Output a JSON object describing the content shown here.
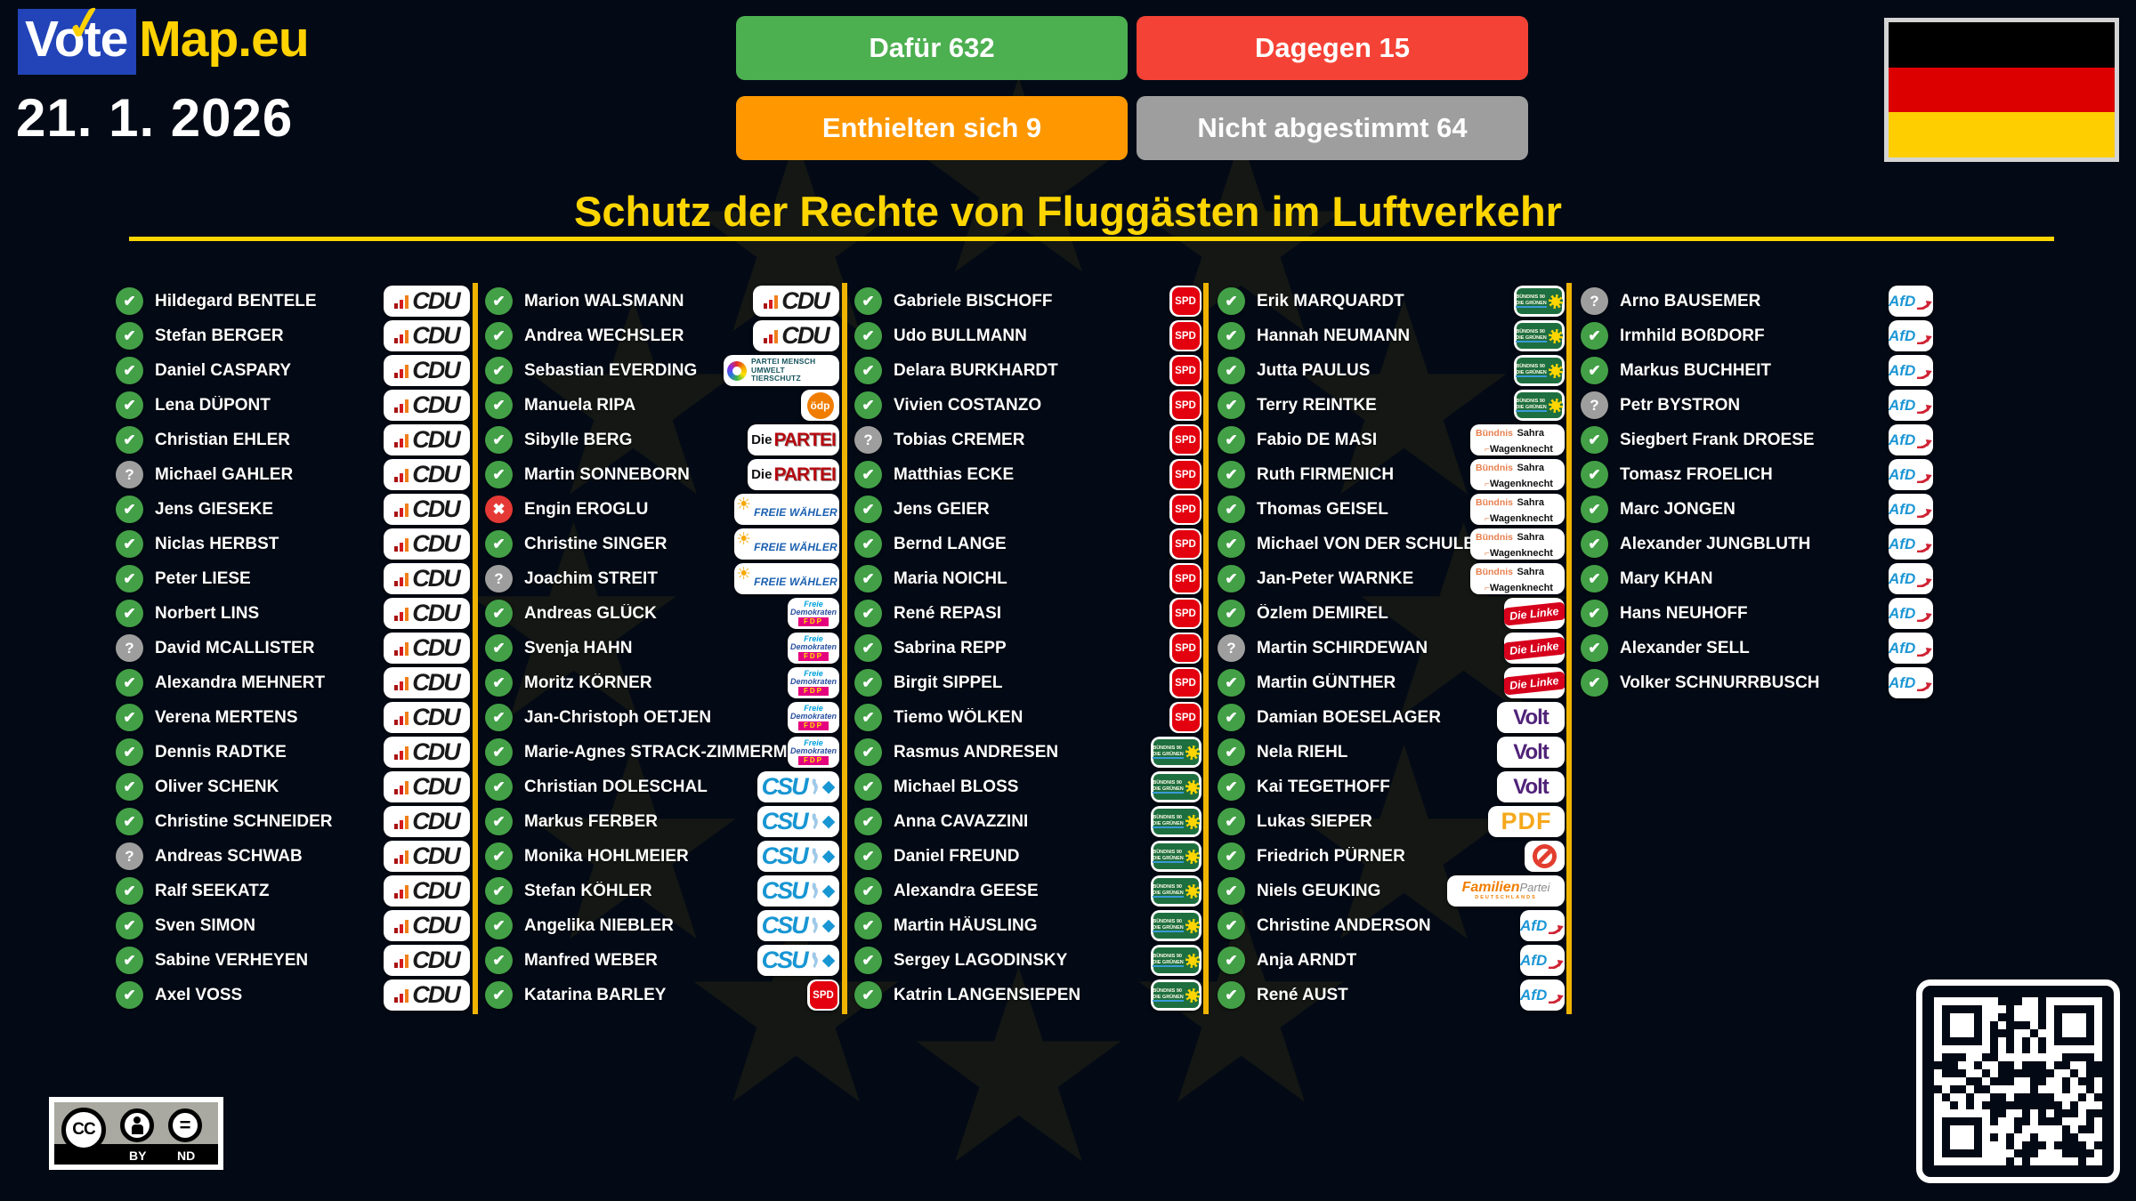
{
  "app": {
    "logo_vote": "Vote",
    "logo_map": "Map.eu",
    "logo_check": "✓",
    "date": "21. 1. 2026",
    "title": "Schutz der Rechte von Fluggästen im Luftverkehr"
  },
  "results": [
    {
      "id": "for",
      "label": "Dafür 632",
      "color": "#4caf50"
    },
    {
      "id": "against",
      "label": "Dagegen 15",
      "color": "#f44336"
    },
    {
      "id": "abstain",
      "label": "Enthielten sich 9",
      "color": "#ff9800"
    },
    {
      "id": "novote",
      "label": "Nicht abgestimmt 64",
      "color": "#9e9e9e"
    }
  ],
  "status_icons": {
    "for": "✔",
    "against": "✖",
    "unknown": "?"
  },
  "status_colors": {
    "for": "#43a047",
    "against": "#e53935",
    "unknown": "#9e9e9e"
  },
  "flag": {
    "stripes": [
      "#000000",
      "#dd0000",
      "#ffce00"
    ]
  },
  "license": {
    "cc": "CC",
    "by": "BY",
    "nd": "ND",
    "eq": "="
  },
  "accent": {
    "yellow": "#ffd500",
    "separator": "#f0b400",
    "background": "#030a15"
  },
  "parties": {
    "cdu": {
      "style": "cdu",
      "label": "CDU"
    },
    "tierschutz": {
      "style": "tierschutz",
      "line1": "PARTEI MENSCH",
      "line2": "UMWELT TIERSCHUTZ"
    },
    "oedp": {
      "style": "oedp",
      "label": "ödp"
    },
    "diepartei": {
      "style": "diepartei",
      "label1": "Die",
      "label2": "PARTEI"
    },
    "fw": {
      "style": "fw",
      "sun": "☀",
      "label": "FREIE WÄHLER"
    },
    "fdp": {
      "style": "fdp",
      "line1": "Freie",
      "line2": "Demokraten",
      "label": "FDP"
    },
    "csu": {
      "style": "csu",
      "label": "CSU",
      "diamond": "◆"
    },
    "spd": {
      "style": "spd",
      "label": "SPD"
    },
    "gruene": {
      "style": "gruene",
      "line1": "BÜNDNIS 90",
      "line2": "DIE GRÜNEN"
    },
    "bsw": {
      "style": "bsw",
      "label1": "Bündnis",
      "label2": "Sahra",
      "label3": "Wagenknecht"
    },
    "linke": {
      "style": "linke",
      "label": "Die Linke"
    },
    "volt": {
      "style": "volt",
      "label": "Volt"
    },
    "pdf": {
      "style": "pdf",
      "label": "PDF"
    },
    "independent": {
      "style": "independent"
    },
    "familie": {
      "style": "familie",
      "label1": "Familien",
      "label2": "Partei",
      "label3": "DEUTSCHLANDS"
    },
    "afd": {
      "style": "afd",
      "label": "AfD"
    }
  },
  "columns": [
    [
      {
        "n": "Hildegard BENTELE",
        "s": "for",
        "p": "cdu"
      },
      {
        "n": "Stefan BERGER",
        "s": "for",
        "p": "cdu"
      },
      {
        "n": "Daniel CASPARY",
        "s": "for",
        "p": "cdu"
      },
      {
        "n": "Lena DÜPONT",
        "s": "for",
        "p": "cdu"
      },
      {
        "n": "Christian EHLER",
        "s": "for",
        "p": "cdu"
      },
      {
        "n": "Michael GAHLER",
        "s": "unknown",
        "p": "cdu"
      },
      {
        "n": "Jens GIESEKE",
        "s": "for",
        "p": "cdu"
      },
      {
        "n": "Niclas HERBST",
        "s": "for",
        "p": "cdu"
      },
      {
        "n": "Peter LIESE",
        "s": "for",
        "p": "cdu"
      },
      {
        "n": "Norbert LINS",
        "s": "for",
        "p": "cdu"
      },
      {
        "n": "David MCALLISTER",
        "s": "unknown",
        "p": "cdu"
      },
      {
        "n": "Alexandra MEHNERT",
        "s": "for",
        "p": "cdu"
      },
      {
        "n": "Verena MERTENS",
        "s": "for",
        "p": "cdu"
      },
      {
        "n": "Dennis RADTKE",
        "s": "for",
        "p": "cdu"
      },
      {
        "n": "Oliver SCHENK",
        "s": "for",
        "p": "cdu"
      },
      {
        "n": "Christine SCHNEIDER",
        "s": "for",
        "p": "cdu"
      },
      {
        "n": "Andreas SCHWAB",
        "s": "unknown",
        "p": "cdu"
      },
      {
        "n": "Ralf SEEKATZ",
        "s": "for",
        "p": "cdu"
      },
      {
        "n": "Sven SIMON",
        "s": "for",
        "p": "cdu"
      },
      {
        "n": "Sabine VERHEYEN",
        "s": "for",
        "p": "cdu"
      },
      {
        "n": "Axel VOSS",
        "s": "for",
        "p": "cdu"
      }
    ],
    [
      {
        "n": "Marion WALSMANN",
        "s": "for",
        "p": "cdu"
      },
      {
        "n": "Andrea WECHSLER",
        "s": "for",
        "p": "cdu"
      },
      {
        "n": "Sebastian EVERDING",
        "s": "for",
        "p": "tierschutz"
      },
      {
        "n": "Manuela RIPA",
        "s": "for",
        "p": "oedp"
      },
      {
        "n": "Sibylle BERG",
        "s": "for",
        "p": "diepartei"
      },
      {
        "n": "Martin SONNEBORN",
        "s": "for",
        "p": "diepartei"
      },
      {
        "n": "Engin EROGLU",
        "s": "against",
        "p": "fw"
      },
      {
        "n": "Christine SINGER",
        "s": "for",
        "p": "fw"
      },
      {
        "n": "Joachim STREIT",
        "s": "unknown",
        "p": "fw"
      },
      {
        "n": "Andreas GLÜCK",
        "s": "for",
        "p": "fdp"
      },
      {
        "n": "Svenja HAHN",
        "s": "for",
        "p": "fdp"
      },
      {
        "n": "Moritz KÖRNER",
        "s": "for",
        "p": "fdp"
      },
      {
        "n": "Jan-Christoph OETJEN",
        "s": "for",
        "p": "fdp"
      },
      {
        "n": "Marie-Agnes STRACK-ZIMMERMANN",
        "s": "for",
        "p": "fdp"
      },
      {
        "n": "Christian DOLESCHAL",
        "s": "for",
        "p": "csu"
      },
      {
        "n": "Markus FERBER",
        "s": "for",
        "p": "csu"
      },
      {
        "n": "Monika HOHLMEIER",
        "s": "for",
        "p": "csu"
      },
      {
        "n": "Stefan KÖHLER",
        "s": "for",
        "p": "csu"
      },
      {
        "n": "Angelika NIEBLER",
        "s": "for",
        "p": "csu"
      },
      {
        "n": "Manfred WEBER",
        "s": "for",
        "p": "csu"
      },
      {
        "n": "Katarina BARLEY",
        "s": "for",
        "p": "spd"
      }
    ],
    [
      {
        "n": "Gabriele BISCHOFF",
        "s": "for",
        "p": "spd"
      },
      {
        "n": "Udo BULLMANN",
        "s": "for",
        "p": "spd"
      },
      {
        "n": "Delara BURKHARDT",
        "s": "for",
        "p": "spd"
      },
      {
        "n": "Vivien COSTANZO",
        "s": "for",
        "p": "spd"
      },
      {
        "n": "Tobias CREMER",
        "s": "unknown",
        "p": "spd"
      },
      {
        "n": "Matthias ECKE",
        "s": "for",
        "p": "spd"
      },
      {
        "n": "Jens GEIER",
        "s": "for",
        "p": "spd"
      },
      {
        "n": "Bernd LANGE",
        "s": "for",
        "p": "spd"
      },
      {
        "n": "Maria NOICHL",
        "s": "for",
        "p": "spd"
      },
      {
        "n": "René REPASI",
        "s": "for",
        "p": "spd"
      },
      {
        "n": "Sabrina REPP",
        "s": "for",
        "p": "spd"
      },
      {
        "n": "Birgit SIPPEL",
        "s": "for",
        "p": "spd"
      },
      {
        "n": "Tiemo WÖLKEN",
        "s": "for",
        "p": "spd"
      },
      {
        "n": "Rasmus ANDRESEN",
        "s": "for",
        "p": "gruene"
      },
      {
        "n": "Michael BLOSS",
        "s": "for",
        "p": "gruene"
      },
      {
        "n": "Anna CAVAZZINI",
        "s": "for",
        "p": "gruene"
      },
      {
        "n": "Daniel FREUND",
        "s": "for",
        "p": "gruene"
      },
      {
        "n": "Alexandra GEESE",
        "s": "for",
        "p": "gruene"
      },
      {
        "n": "Martin HÄUSLING",
        "s": "for",
        "p": "gruene"
      },
      {
        "n": "Sergey LAGODINSKY",
        "s": "for",
        "p": "gruene"
      },
      {
        "n": "Katrin LANGENSIEPEN",
        "s": "for",
        "p": "gruene"
      }
    ],
    [
      {
        "n": "Erik MARQUARDT",
        "s": "for",
        "p": "gruene"
      },
      {
        "n": "Hannah NEUMANN",
        "s": "for",
        "p": "gruene"
      },
      {
        "n": "Jutta PAULUS",
        "s": "for",
        "p": "gruene"
      },
      {
        "n": "Terry REINTKE",
        "s": "for",
        "p": "gruene"
      },
      {
        "n": "Fabio DE MASI",
        "s": "for",
        "p": "bsw"
      },
      {
        "n": "Ruth FIRMENICH",
        "s": "for",
        "p": "bsw"
      },
      {
        "n": "Thomas GEISEL",
        "s": "for",
        "p": "bsw"
      },
      {
        "n": "Michael VON DER SCHULENBURG",
        "s": "for",
        "p": "bsw"
      },
      {
        "n": "Jan-Peter WARNKE",
        "s": "for",
        "p": "bsw"
      },
      {
        "n": "Özlem DEMIREL",
        "s": "for",
        "p": "linke"
      },
      {
        "n": "Martin SCHIRDEWAN",
        "s": "unknown",
        "p": "linke"
      },
      {
        "n": "Martin GÜNTHER",
        "s": "for",
        "p": "linke"
      },
      {
        "n": "Damian BOESELAGER",
        "s": "for",
        "p": "volt"
      },
      {
        "n": "Nela RIEHL",
        "s": "for",
        "p": "volt"
      },
      {
        "n": "Kai TEGETHOFF",
        "s": "for",
        "p": "volt"
      },
      {
        "n": "Lukas SIEPER",
        "s": "for",
        "p": "pdf"
      },
      {
        "n": "Friedrich PÜRNER",
        "s": "for",
        "p": "independent"
      },
      {
        "n": "Niels GEUKING",
        "s": "for",
        "p": "familie"
      },
      {
        "n": "Christine ANDERSON",
        "s": "for",
        "p": "afd"
      },
      {
        "n": "Anja ARNDT",
        "s": "for",
        "p": "afd"
      },
      {
        "n": "René AUST",
        "s": "for",
        "p": "afd"
      }
    ],
    [
      {
        "n": "Arno BAUSEMER",
        "s": "unknown",
        "p": "afd"
      },
      {
        "n": "Irmhild BOßDORF",
        "s": "for",
        "p": "afd"
      },
      {
        "n": "Markus BUCHHEIT",
        "s": "for",
        "p": "afd"
      },
      {
        "n": "Petr BYSTRON",
        "s": "unknown",
        "p": "afd"
      },
      {
        "n": "Siegbert Frank DROESE",
        "s": "for",
        "p": "afd"
      },
      {
        "n": "Tomasz FROELICH",
        "s": "for",
        "p": "afd"
      },
      {
        "n": "Marc JONGEN",
        "s": "for",
        "p": "afd"
      },
      {
        "n": "Alexander JUNGBLUTH",
        "s": "for",
        "p": "afd"
      },
      {
        "n": "Mary KHAN",
        "s": "for",
        "p": "afd"
      },
      {
        "n": "Hans NEUHOFF",
        "s": "for",
        "p": "afd"
      },
      {
        "n": "Alexander SELL",
        "s": "for",
        "p": "afd"
      },
      {
        "n": "Volker SCHNURRBUSCH",
        "s": "for",
        "p": "afd"
      }
    ]
  ]
}
